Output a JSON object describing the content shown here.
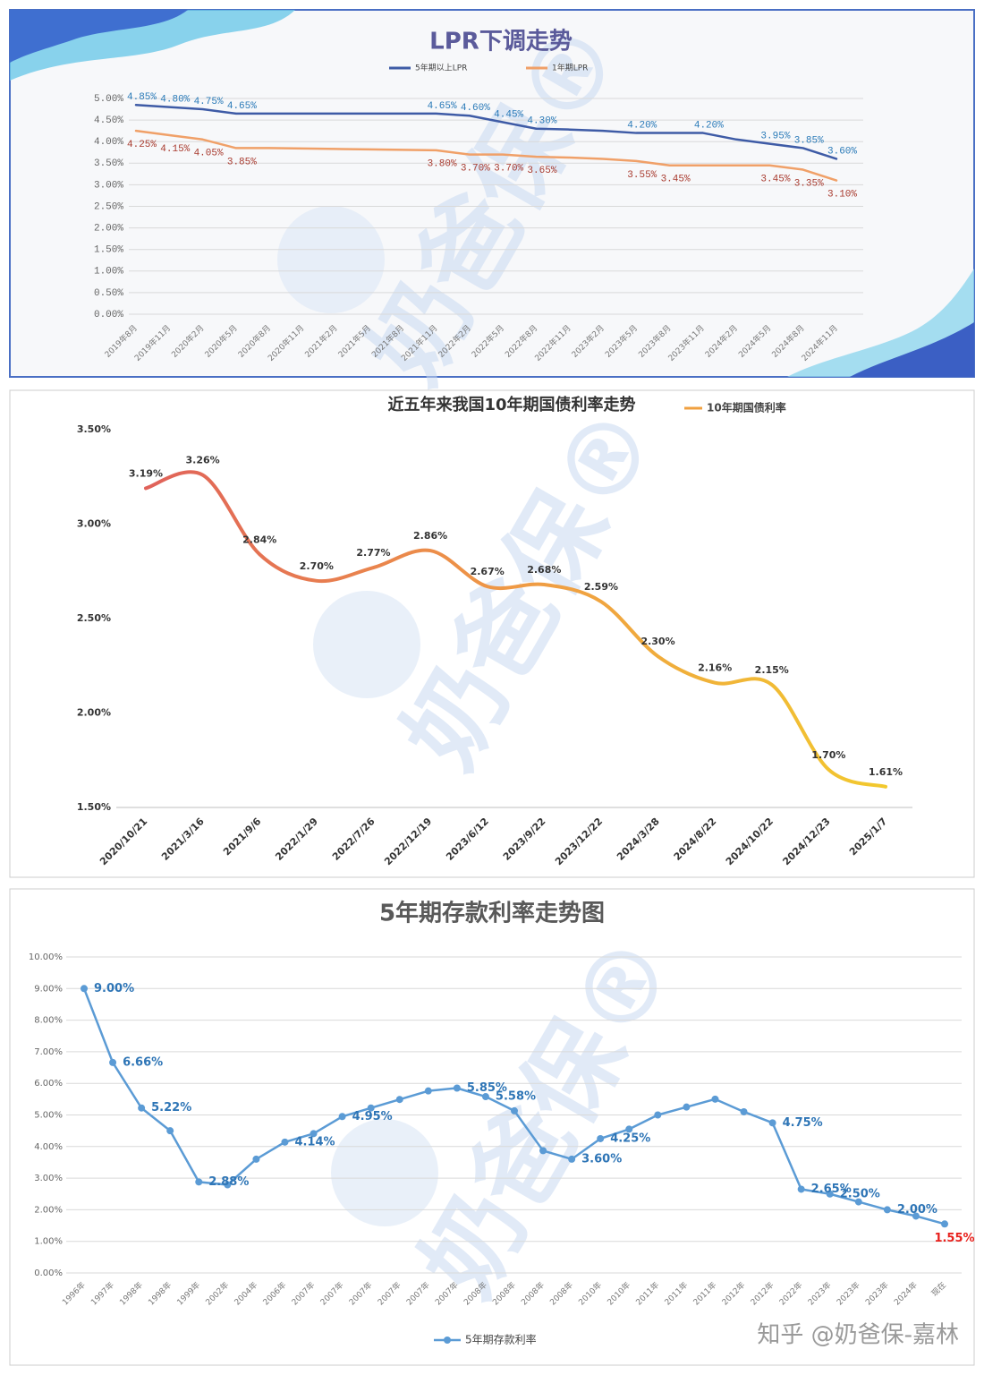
{
  "watermark": "奶爸保®",
  "footer": "知乎 @奶爸保-嘉林",
  "chart_data": [
    {
      "type": "line",
      "title": "LPR下调走势",
      "categories": [
        "2019年8月",
        "2019年11月",
        "2020年2月",
        "2020年5月",
        "2020年8月",
        "2020年11月",
        "2021年2月",
        "2021年5月",
        "2021年8月",
        "2021年11月",
        "2022年2月",
        "2022年5月",
        "2022年8月",
        "2022年11月",
        "2023年2月",
        "2023年5月",
        "2023年8月",
        "2023年11月",
        "2024年2月",
        "2024年5月",
        "2024年8月",
        "2024年11月"
      ],
      "series": [
        {
          "name": "5年期以上LPR",
          "color": "#3e5ba6",
          "label_color": "#2a7ab8",
          "values": [
            4.85,
            4.8,
            4.75,
            4.65,
            4.65,
            4.65,
            4.65,
            4.65,
            4.65,
            4.65,
            4.6,
            4.45,
            4.3,
            4.28,
            4.25,
            4.2,
            4.2,
            4.2,
            4.05,
            3.95,
            3.85,
            3.6
          ],
          "value_labels": [
            "4.85%",
            "4.80%",
            "4.75%",
            "4.65%",
            null,
            null,
            null,
            null,
            null,
            "4.65%",
            "4.60%",
            "4.45%",
            "4.30%",
            null,
            null,
            "4.20%",
            null,
            "4.20%",
            null,
            "3.95%",
            "3.85%",
            "3.60%"
          ]
        },
        {
          "name": "1年期LPR",
          "color": "#f0a068",
          "label_color": "#a83a2e",
          "values": [
            4.25,
            4.15,
            4.05,
            3.85,
            3.85,
            3.84,
            3.83,
            3.82,
            3.81,
            3.8,
            3.7,
            3.7,
            3.65,
            3.63,
            3.6,
            3.55,
            3.45,
            3.45,
            3.45,
            3.45,
            3.35,
            3.1
          ],
          "value_labels": [
            "4.25%",
            "4.15%",
            "4.05%",
            "3.85%",
            null,
            null,
            null,
            null,
            null,
            "3.80%",
            "3.70%",
            "3.70%",
            "3.65%",
            null,
            null,
            "3.55%",
            "3.45%",
            null,
            null,
            "3.45%",
            "3.35%",
            "3.10%"
          ]
        }
      ],
      "ylim": [
        0,
        5
      ],
      "yticks": [
        {
          "value": 0,
          "label": "0.00%"
        },
        {
          "value": 0.5,
          "label": "0.50%"
        },
        {
          "value": 1,
          "label": "1.00%"
        },
        {
          "value": 1.5,
          "label": "1.50%"
        },
        {
          "value": 2,
          "label": "2.00%"
        },
        {
          "value": 2.5,
          "label": "2.50%"
        },
        {
          "value": 3,
          "label": "3.00%"
        },
        {
          "value": 3.5,
          "label": "3.50%"
        },
        {
          "value": 4,
          "label": "4.00%"
        },
        {
          "value": 4.5,
          "label": "4.50%"
        },
        {
          "value": 5,
          "label": "5.00%"
        }
      ],
      "grid": true,
      "legend": "top"
    },
    {
      "type": "line",
      "smooth": true,
      "title": "近五年来我国10年期国债利率走势",
      "categories": [
        "2020/10/21",
        "2021/3/16",
        "2021/9/6",
        "2022/1/29",
        "2022/7/26",
        "2022/12/19",
        "2023/6/12",
        "2023/9/22",
        "2023/12/22",
        "2024/3/28",
        "2024/8/22",
        "2024/10/22",
        "2024/12/23",
        "2025/1/7"
      ],
      "series": [
        {
          "name": "10年期国债利率",
          "color": "#f0a040",
          "gradient": [
            "#e0625a",
            "#ef9a45",
            "#f2c92e"
          ],
          "label_color": "#333333",
          "values": [
            3.19,
            3.26,
            2.84,
            2.7,
            2.77,
            2.86,
            2.67,
            2.68,
            2.59,
            2.3,
            2.16,
            2.15,
            1.7,
            1.61
          ],
          "value_labels": [
            "3.19%",
            "3.26%",
            "2.84%",
            "2.70%",
            "2.77%",
            "2.86%",
            "2.67%",
            "2.68%",
            "2.59%",
            "2.30%",
            "2.16%",
            "2.15%",
            "1.70%",
            "1.61%"
          ]
        }
      ],
      "ylim": [
        1.5,
        3.5
      ],
      "yticks": [
        {
          "value": 1.5,
          "label": "1.50%"
        },
        {
          "value": 2,
          "label": "2.00%"
        },
        {
          "value": 2.5,
          "label": "2.50%"
        },
        {
          "value": 3,
          "label": "3.00%"
        },
        {
          "value": 3.5,
          "label": "3.50%"
        }
      ],
      "grid": false,
      "legend": "top"
    },
    {
      "type": "line",
      "markers": true,
      "title": "5年期存款利率走势图",
      "categories": [
        "1996年",
        "1997年",
        "1998年",
        "1998年",
        "1999年",
        "2002年",
        "2004年",
        "2006年",
        "2007年",
        "2007年",
        "2007年",
        "2007年",
        "2007年",
        "2007年",
        "2008年",
        "2008年",
        "2008年",
        "2008年",
        "2010年",
        "2010年",
        "2011年",
        "2011年",
        "2011年",
        "2012年",
        "2012年",
        "2022年",
        "2023年",
        "2023年",
        "2023年",
        "2024年",
        "现在"
      ],
      "series": [
        {
          "name": "5年期存款利率",
          "color": "#5b9bd5",
          "label_color": "#2e75b6",
          "last_label_color": "#e8201c",
          "values": [
            9.0,
            6.66,
            5.22,
            4.5,
            2.88,
            2.79,
            3.6,
            4.14,
            4.41,
            4.95,
            5.22,
            5.49,
            5.76,
            5.85,
            5.58,
            5.13,
            3.87,
            3.6,
            4.25,
            4.55,
            5.0,
            5.25,
            5.5,
            5.1,
            4.75,
            2.65,
            2.5,
            2.25,
            2.0,
            1.8,
            1.55
          ],
          "value_labels": [
            "9.00%",
            "6.66%",
            "5.22%",
            null,
            "2.88%",
            null,
            null,
            "4.14%",
            null,
            "4.95%",
            null,
            null,
            null,
            "5.85%",
            "5.58%",
            null,
            null,
            "3.60%",
            "4.25%",
            null,
            null,
            null,
            null,
            null,
            "4.75%",
            "2.65%",
            "2.50%",
            null,
            "2.00%",
            null,
            "1.55%"
          ]
        }
      ],
      "ylim": [
        0,
        10
      ],
      "yticks": [
        {
          "value": 0,
          "label": "0.00%"
        },
        {
          "value": 1,
          "label": "1.00%"
        },
        {
          "value": 2,
          "label": "2.00%"
        },
        {
          "value": 3,
          "label": "3.00%"
        },
        {
          "value": 4,
          "label": "4.00%"
        },
        {
          "value": 5,
          "label": "5.00%"
        },
        {
          "value": 6,
          "label": "6.00%"
        },
        {
          "value": 7,
          "label": "7.00%"
        },
        {
          "value": 8,
          "label": "8.00%"
        },
        {
          "value": 9,
          "label": "9.00%"
        },
        {
          "value": 10,
          "label": "10.00%"
        }
      ],
      "grid": true,
      "legend": "bottom"
    }
  ]
}
